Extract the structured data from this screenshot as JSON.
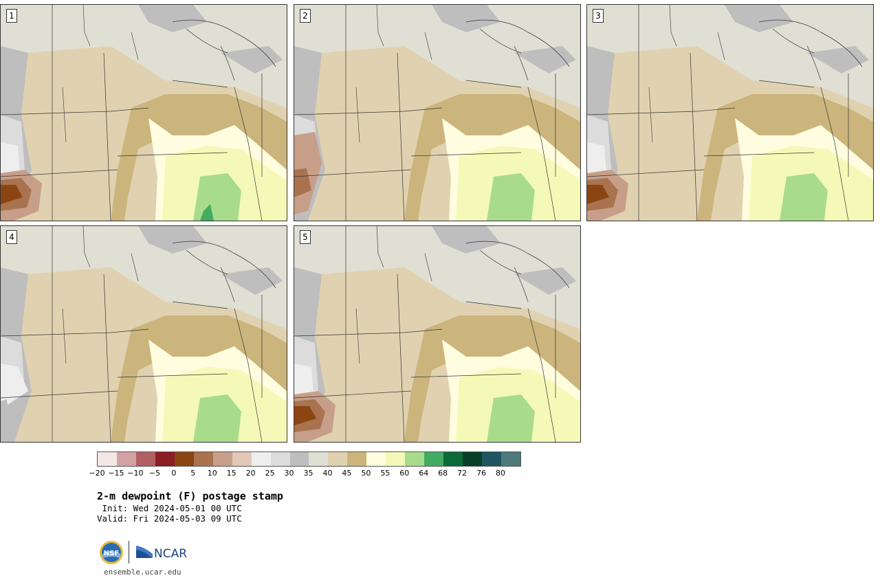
{
  "panels": [
    {
      "label": "1",
      "variant": 1
    },
    {
      "label": "2",
      "variant": 2
    },
    {
      "label": "3",
      "variant": 3
    },
    {
      "label": "4",
      "variant": 4
    },
    {
      "label": "5",
      "variant": 5
    }
  ],
  "colorbar": {
    "colors": [
      "#f3e8e6",
      "#d3a2a4",
      "#b05f63",
      "#8c1d25",
      "#8b4513",
      "#a9734f",
      "#c79f89",
      "#e2c8b7",
      "#eeeeee",
      "#dcdcdc",
      "#bebebe",
      "#e0dfd4",
      "#e0d2b0",
      "#cbb57c",
      "#fffde0",
      "#f5f9b8",
      "#a8dc8c",
      "#44ab62",
      "#0b6a37",
      "#073e2a",
      "#1e5560",
      "#4e7a7c"
    ],
    "ticks": [
      "−20",
      "−15",
      "−10",
      "−5",
      "0",
      "5",
      "10",
      "15",
      "20",
      "25",
      "30",
      "35",
      "40",
      "45",
      "50",
      "55",
      "60",
      "64",
      "68",
      "72",
      "76",
      "80"
    ]
  },
  "title": "2-m dewpoint (F) postage stamp",
  "init": " Init: Wed 2024-05-01 00 UTC",
  "valid": "Valid: Fri 2024-05-03 09 UTC",
  "logos": {
    "nsf": "nsf-logo",
    "ncar": "NCAR"
  },
  "url": "ensemble.ucar.edu"
}
